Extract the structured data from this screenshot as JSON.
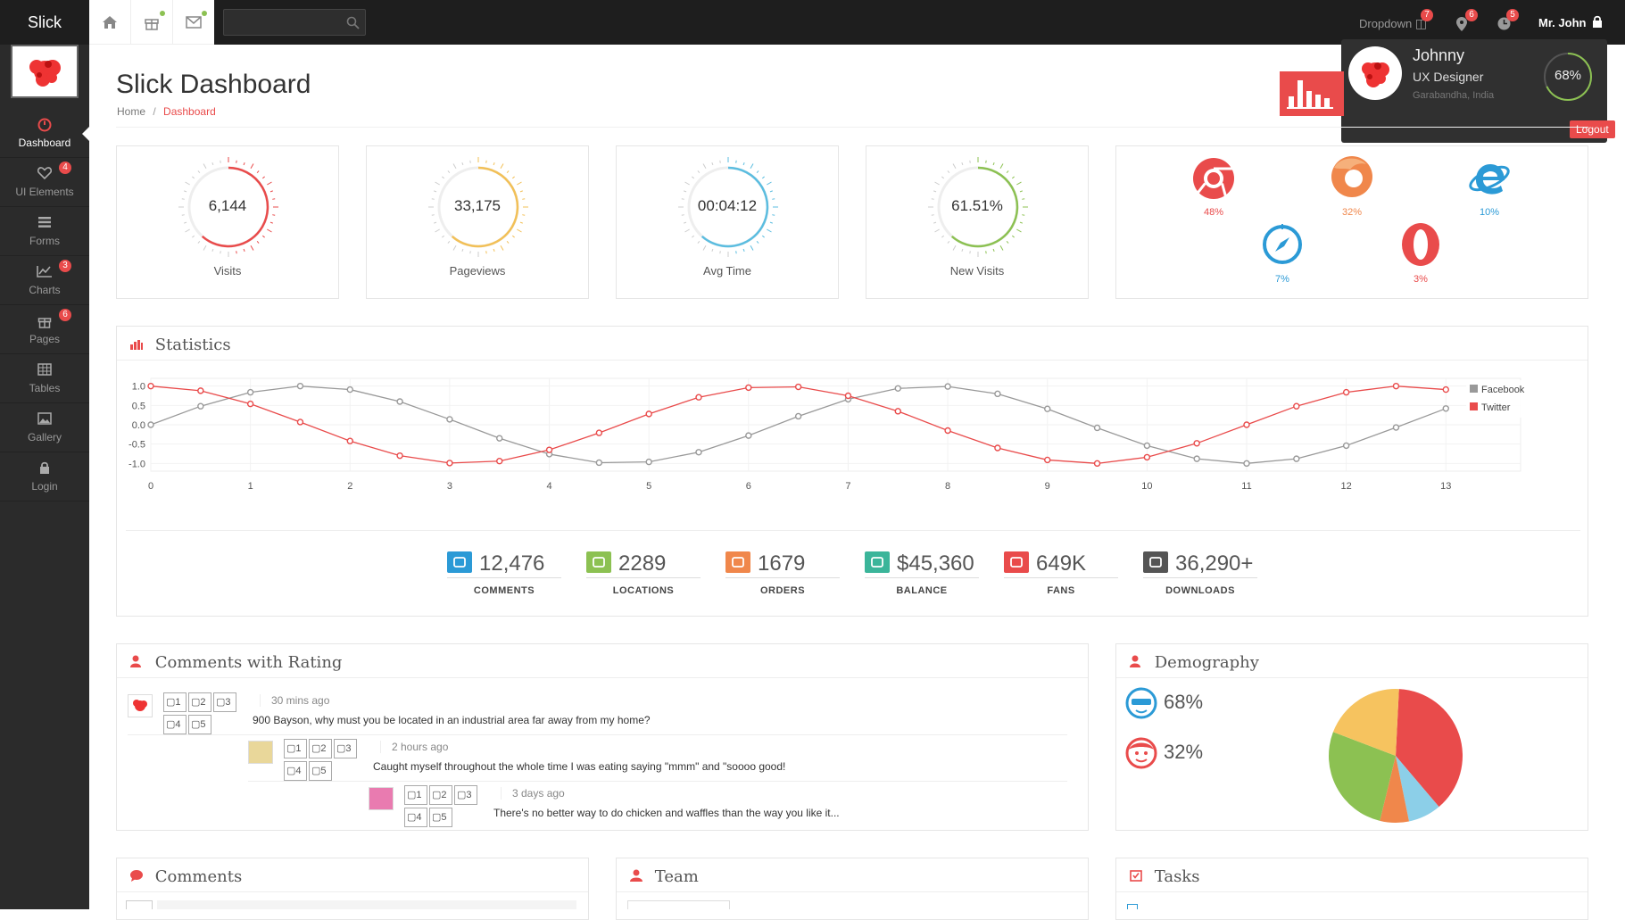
{
  "app": {
    "logo": "Slick"
  },
  "topbar": {
    "search": {
      "placeholder": ""
    },
    "dropdown": {
      "label": "Dropdown",
      "badge": "7"
    },
    "location_badge": "6",
    "clock_badge": "5",
    "user": {
      "name": "Mr. John"
    }
  },
  "profile": {
    "name": "Johnny",
    "role": "UX Designer",
    "location": "Garabandha, India",
    "progress": "68%",
    "progress_value": 0.68,
    "logout": "Logout"
  },
  "sidebar": {
    "items": [
      {
        "label": "Dashboard",
        "badge": ""
      },
      {
        "label": "UI Elements",
        "badge": "4"
      },
      {
        "label": "Forms",
        "badge": ""
      },
      {
        "label": "Charts",
        "badge": "3"
      },
      {
        "label": "Pages",
        "badge": "6"
      },
      {
        "label": "Tables",
        "badge": ""
      },
      {
        "label": "Gallery",
        "badge": ""
      },
      {
        "label": "Login",
        "badge": ""
      }
    ]
  },
  "page": {
    "title": "Slick Dashboard",
    "breadcrumb": {
      "home": "Home",
      "separator": "/",
      "current": "Dashboard"
    }
  },
  "gauges": [
    {
      "value": "6,144",
      "label": "Visits",
      "color": "#e94b4b"
    },
    {
      "value": "33,175",
      "label": "Pageviews",
      "color": "#f2c057"
    },
    {
      "value": "00:04:12",
      "label": "Avg Time",
      "color": "#5bbde0"
    },
    {
      "value": "61.51%",
      "label": "New Visits",
      "color": "#8cc152"
    }
  ],
  "browsers": [
    {
      "name": "chrome-icon",
      "pct": "48%",
      "color": "#e94b4b"
    },
    {
      "name": "firefox-icon",
      "pct": "32%",
      "color": "#f0874b"
    },
    {
      "name": "ie-icon",
      "pct": "10%",
      "color": "#2b9ad6"
    },
    {
      "name": "safari-icon",
      "pct": "7%",
      "color": "#2b9ad6"
    },
    {
      "name": "opera-icon",
      "pct": "3%",
      "color": "#e94b4b"
    }
  ],
  "statistics": {
    "title": "Statistics"
  },
  "chart_data": {
    "type": "line",
    "x": [
      0,
      0.5,
      1,
      1.5,
      2,
      2.5,
      3,
      3.5,
      4,
      4.5,
      5,
      5.5,
      6,
      6.5,
      7,
      7.5,
      8,
      8.5,
      9,
      9.5,
      10,
      10.5,
      11,
      11.5,
      12,
      12.5,
      13
    ],
    "series": [
      {
        "name": "Facebook",
        "color": "#999999",
        "values": [
          0.0,
          0.48,
          0.84,
          1.0,
          0.91,
          0.6,
          0.14,
          -0.35,
          -0.76,
          -0.98,
          -0.96,
          -0.71,
          -0.28,
          0.22,
          0.66,
          0.94,
          0.99,
          0.8,
          0.41,
          -0.08,
          -0.54,
          -0.88,
          -1.0,
          -0.88,
          -0.54,
          -0.07,
          0.42
        ]
      },
      {
        "name": "Twitter",
        "color": "#e94b4b",
        "values": [
          1.0,
          0.88,
          0.54,
          0.07,
          -0.42,
          -0.8,
          -0.99,
          -0.94,
          -0.65,
          -0.21,
          0.28,
          0.71,
          0.96,
          0.98,
          0.75,
          0.35,
          -0.15,
          -0.6,
          -0.91,
          -1.0,
          -0.84,
          -0.48,
          0.0,
          0.48,
          0.84,
          1.0,
          0.91
        ]
      }
    ],
    "xticks": [
      "0",
      "1",
      "2",
      "3",
      "4",
      "5",
      "6",
      "7",
      "8",
      "9",
      "10",
      "11",
      "12",
      "13"
    ],
    "yticks": [
      "1.0",
      "0.5",
      "0.0",
      "-0.5",
      "-1.0"
    ],
    "ylim": [
      -1.2,
      1.2
    ],
    "grid": true,
    "legend": "top-right"
  },
  "stats": [
    {
      "value": "12,476",
      "label": "COMMENTS",
      "icon": "comment-icon",
      "color": "#2b9ad6"
    },
    {
      "value": "2289",
      "label": "LOCATIONS",
      "icon": "map-marker-icon",
      "color": "#8cc152"
    },
    {
      "value": "1679",
      "label": "ORDERS",
      "icon": "orders-icon",
      "color": "#f0874b"
    },
    {
      "value": "$45,360",
      "label": "BALANCE",
      "icon": "briefcase-icon",
      "color": "#3bb59a"
    },
    {
      "value": "649K",
      "label": "FANS",
      "icon": "heart-icon",
      "color": "#e94b4b"
    },
    {
      "value": "36,290+",
      "label": "DOWNLOADS",
      "icon": "download-icon",
      "color": "#555555"
    }
  ],
  "comments_rating": {
    "title": "Comments with Rating",
    "rating_labels": [
      "1",
      "2",
      "3",
      "4",
      "5"
    ],
    "items": [
      {
        "time": "30 mins ago",
        "text": "900 Bayson, why must you be located in an industrial area far away from my home?"
      },
      {
        "time": "2 hours ago",
        "text": "Caught myself throughout the whole time I was eating saying \"mmm\" and \"soooo good!"
      },
      {
        "time": "3 days ago",
        "text": "There's no better way to do chicken and waffles than the way you like it..."
      }
    ]
  },
  "demography": {
    "title": "Demography",
    "male": "68%",
    "female": "32%",
    "pie": [
      {
        "value": 0.38,
        "color": "#e94b4b"
      },
      {
        "value": 0.08,
        "color": "#8ccfe8"
      },
      {
        "value": 0.07,
        "color": "#f0874b"
      },
      {
        "value": 0.27,
        "color": "#8cc152"
      },
      {
        "value": 0.2,
        "color": "#f6c35f"
      }
    ]
  },
  "bottom": {
    "comments": "Comments",
    "team": "Team",
    "tasks": "Tasks"
  }
}
